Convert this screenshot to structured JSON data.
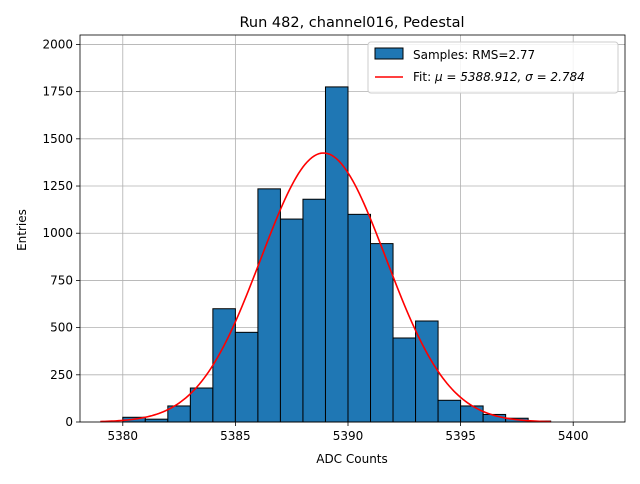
{
  "chart_data": {
    "type": "bar",
    "title": "Run 482, channel016, Pedestal",
    "xlabel": "ADC Counts",
    "ylabel": "Entries",
    "xlim": [
      5378.1,
      5402.3
    ],
    "ylim": [
      0,
      2050
    ],
    "grid": true,
    "legend_placement": "top-right",
    "x_ticks": [
      5380,
      5385,
      5390,
      5395,
      5400
    ],
    "y_ticks": [
      0,
      250,
      500,
      750,
      1000,
      1250,
      1500,
      1750,
      2000
    ],
    "x_tick_labels": [
      "5380",
      "5385",
      "5390",
      "5395",
      "5400"
    ],
    "y_tick_labels": [
      "0",
      "250",
      "500",
      "750",
      "1000",
      "1250",
      "1500",
      "1750",
      "2000"
    ],
    "histogram": {
      "name": "Samples: RMS=2.77",
      "color": "#1f77b4",
      "edge_color": "#000000",
      "bin_edges": [
        5380,
        5381,
        5382,
        5383,
        5384,
        5385,
        5386,
        5387,
        5388,
        5389,
        5390,
        5391,
        5392,
        5393,
        5394,
        5395,
        5396,
        5397,
        5398,
        5399
      ],
      "counts": [
        25,
        15,
        85,
        180,
        600,
        475,
        1235,
        1075,
        1180,
        1775,
        1100,
        945,
        445,
        535,
        115,
        85,
        40,
        20,
        5
      ]
    },
    "fit": {
      "name_prefix": "Fit: ",
      "name_math": "μ = 5388.912, σ = 2.784",
      "mu": 5388.912,
      "sigma": 2.784,
      "amplitude": 1425,
      "x_range": [
        5379,
        5399
      ],
      "color": "#ff0000"
    }
  }
}
